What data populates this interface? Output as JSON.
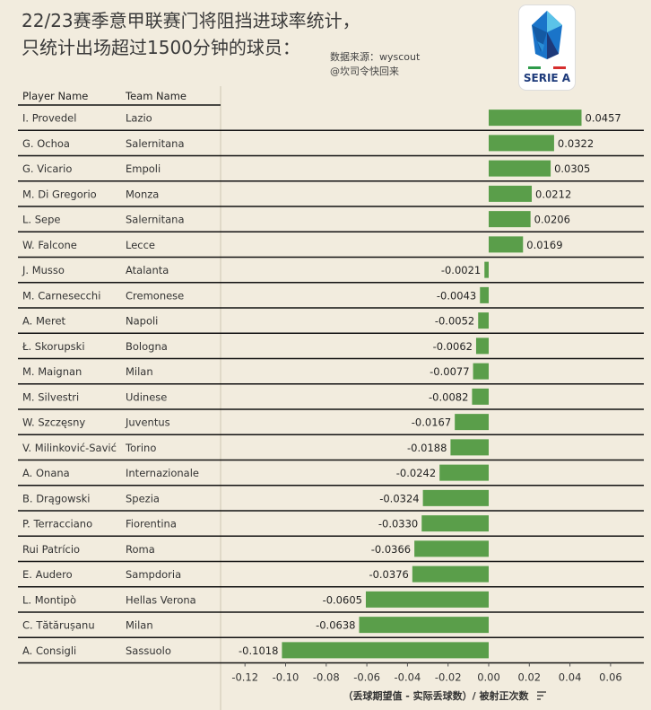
{
  "title": {
    "line1": "22/23赛季意甲联赛门将阻挡进球率统计，",
    "line2": "只统计出场超过1500分钟的球员："
  },
  "source": {
    "line1": "数据来源：wyscout",
    "line2": "@坎司令快回来"
  },
  "logo": {
    "text": "SERIE A",
    "colors": {
      "blue": "#1a74c9",
      "light_blue": "#5bc3e8",
      "navy": "#1d3a7a"
    }
  },
  "table": {
    "player_header": "Player Name",
    "team_header": "Team Name"
  },
  "colors": {
    "bar": "#5a9e4a",
    "background": "#f2ecde",
    "row_line": "#111111"
  },
  "chart_data": {
    "type": "bar",
    "orientation": "horizontal",
    "xlabel": "（丢球期望值 - 实际丢球数）/ 被射正次数",
    "xlim": [
      -0.13,
      0.07
    ],
    "xticks": [
      -0.12,
      -0.1,
      -0.08,
      -0.06,
      -0.04,
      -0.02,
      0.0,
      0.02,
      0.04,
      0.06
    ],
    "xtick_labels": [
      "-0.12",
      "-0.10",
      "-0.08",
      "-0.06",
      "-0.04",
      "-0.02",
      "0.00",
      "0.02",
      "0.04",
      "0.06"
    ],
    "rows": [
      {
        "player": "I. Provedel",
        "team": "Lazio",
        "value": 0.0457,
        "label": "0.0457"
      },
      {
        "player": "G. Ochoa",
        "team": "Salernitana",
        "value": 0.0322,
        "label": "0.0322"
      },
      {
        "player": "G. Vicario",
        "team": "Empoli",
        "value": 0.0305,
        "label": "0.0305"
      },
      {
        "player": "M. Di Gregorio",
        "team": "Monza",
        "value": 0.0212,
        "label": "0.0212"
      },
      {
        "player": "L. Sepe",
        "team": "Salernitana",
        "value": 0.0206,
        "label": "0.0206"
      },
      {
        "player": "W. Falcone",
        "team": "Lecce",
        "value": 0.0169,
        "label": "0.0169"
      },
      {
        "player": "J. Musso",
        "team": "Atalanta",
        "value": -0.0021,
        "label": "-0.0021"
      },
      {
        "player": "M. Carnesecchi",
        "team": "Cremonese",
        "value": -0.0043,
        "label": "-0.0043"
      },
      {
        "player": "A. Meret",
        "team": "Napoli",
        "value": -0.0052,
        "label": "-0.0052"
      },
      {
        "player": "Ł. Skorupski",
        "team": "Bologna",
        "value": -0.0062,
        "label": "-0.0062"
      },
      {
        "player": "M. Maignan",
        "team": "Milan",
        "value": -0.0077,
        "label": "-0.0077"
      },
      {
        "player": "M. Silvestri",
        "team": "Udinese",
        "value": -0.0082,
        "label": "-0.0082"
      },
      {
        "player": "W. Szczęsny",
        "team": "Juventus",
        "value": -0.0167,
        "label": "-0.0167"
      },
      {
        "player": "V. Milinković-Savić",
        "team": "Torino",
        "value": -0.0188,
        "label": "-0.0188"
      },
      {
        "player": "A. Onana",
        "team": "Internazionale",
        "value": -0.0242,
        "label": "-0.0242"
      },
      {
        "player": "B. Drągowski",
        "team": "Spezia",
        "value": -0.0324,
        "label": "-0.0324"
      },
      {
        "player": "P. Terracciano",
        "team": "Fiorentina",
        "value": -0.033,
        "label": "-0.0330"
      },
      {
        "player": "Rui Patrício",
        "team": "Roma",
        "value": -0.0366,
        "label": "-0.0366"
      },
      {
        "player": "E. Audero",
        "team": "Sampdoria",
        "value": -0.0376,
        "label": "-0.0376"
      },
      {
        "player": "L. Montipò",
        "team": "Hellas Verona",
        "value": -0.0605,
        "label": "-0.0605"
      },
      {
        "player": "C. Tătărușanu",
        "team": "Milan",
        "value": -0.0638,
        "label": "-0.0638"
      },
      {
        "player": "A. Consigli",
        "team": "Sassuolo",
        "value": -0.1018,
        "label": "-0.1018"
      }
    ]
  }
}
